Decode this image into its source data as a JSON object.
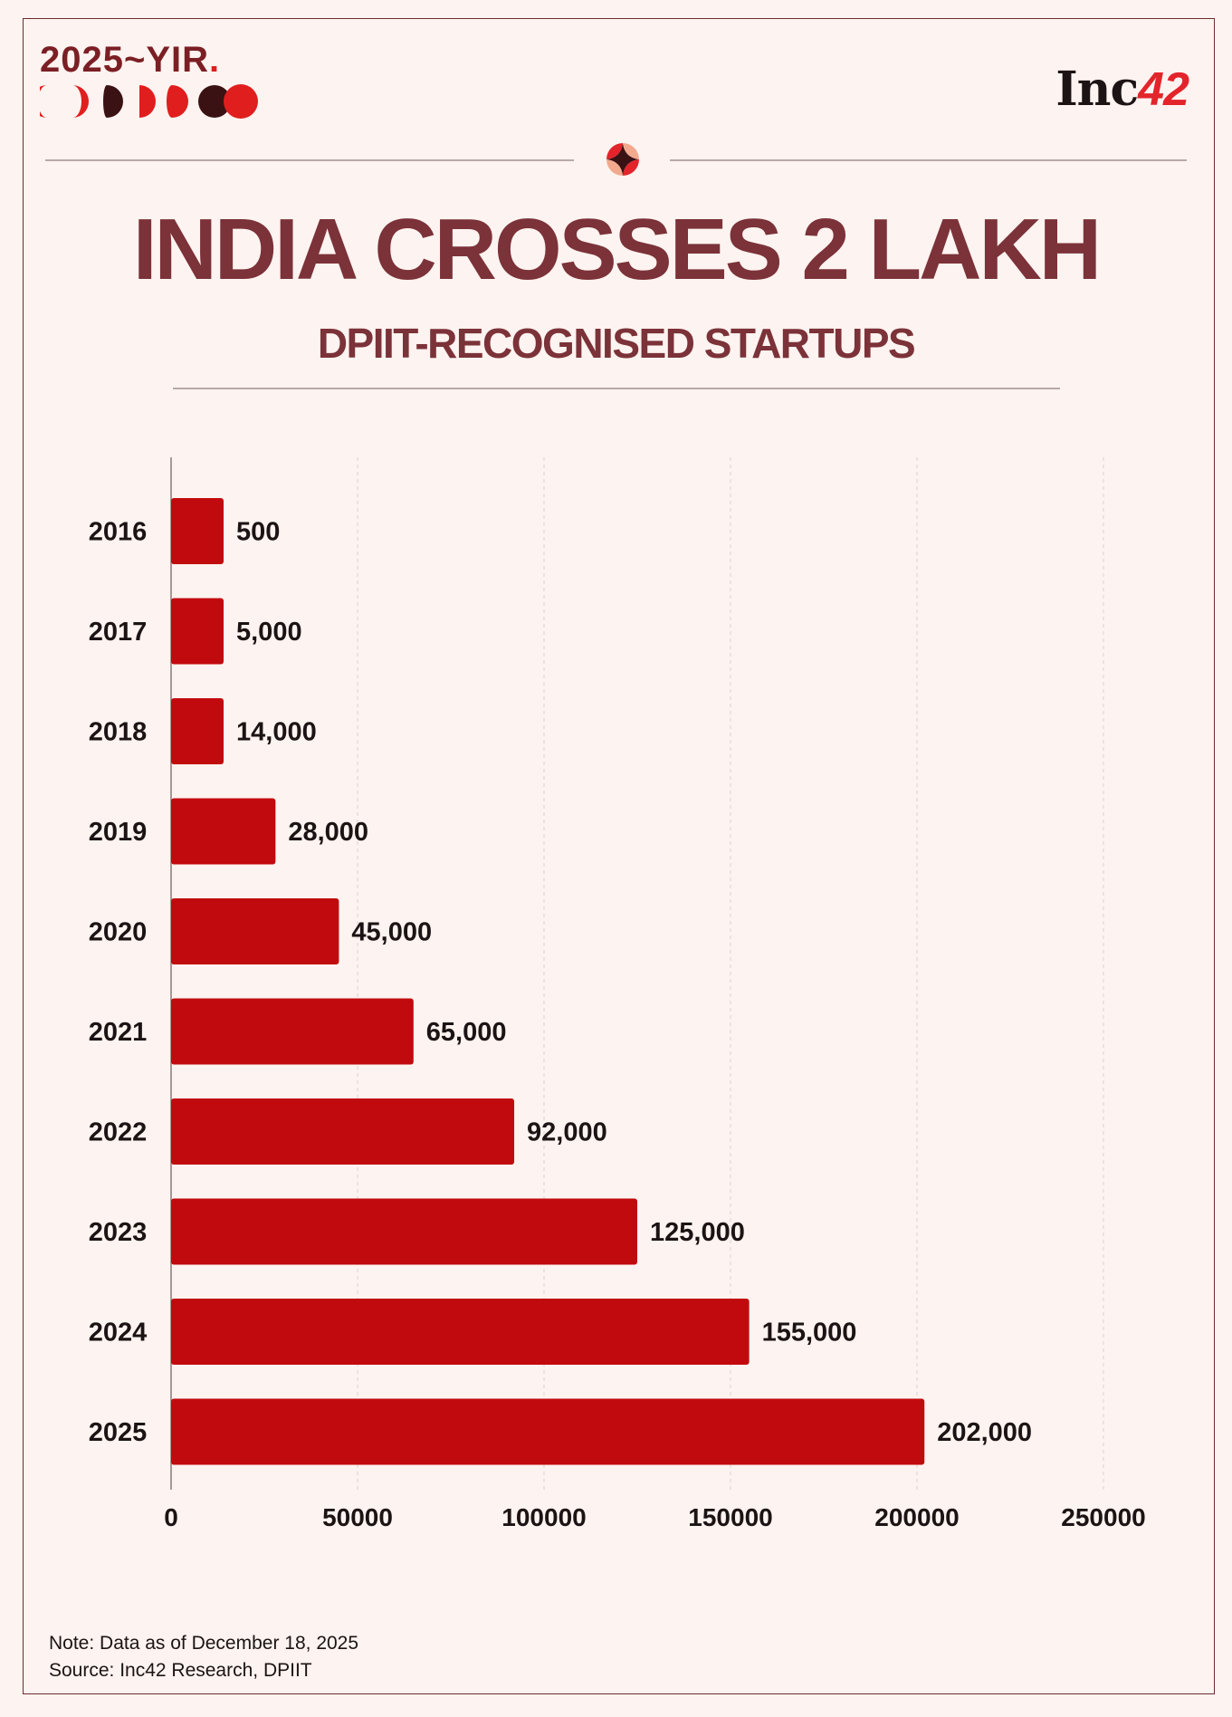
{
  "header": {
    "badge": "2025~YIR",
    "badge_dot": ".",
    "brand_main": "Inc",
    "brand_num": "42"
  },
  "title": "INDIA CROSSES 2 LAKH",
  "subtitle": "DPIIT-RECOGNISED STARTUPS",
  "colors": {
    "bar": "#c10a0e",
    "title": "#7b3238",
    "accent": "#e3242b"
  },
  "chart_data": {
    "type": "bar",
    "orientation": "horizontal",
    "categories": [
      "2016",
      "2017",
      "2018",
      "2019",
      "2020",
      "2021",
      "2022",
      "2023",
      "2024",
      "2025"
    ],
    "values": [
      500,
      5000,
      14000,
      28000,
      45000,
      65000,
      92000,
      125000,
      155000,
      202000
    ],
    "value_labels": [
      "500",
      "5,000",
      "14,000",
      "28,000",
      "45,000",
      "65,000",
      "92,000",
      "125,000",
      "155,000",
      "202,000"
    ],
    "xlim": [
      0,
      250000
    ],
    "xticks": [
      0,
      50000,
      100000,
      150000,
      200000,
      250000
    ],
    "xtick_labels": [
      "0",
      "50000",
      "100000",
      "150000",
      "200000",
      "250000"
    ],
    "grid": "vertical dashed",
    "title": "INDIA CROSSES 2 LAKH",
    "subtitle": "DPIIT-RECOGNISED STARTUPS",
    "xlabel": "",
    "ylabel": ""
  },
  "notes": {
    "note": "Note: Data as of December 18, 2025",
    "source": "Source: Inc42 Research, DPIIT"
  }
}
